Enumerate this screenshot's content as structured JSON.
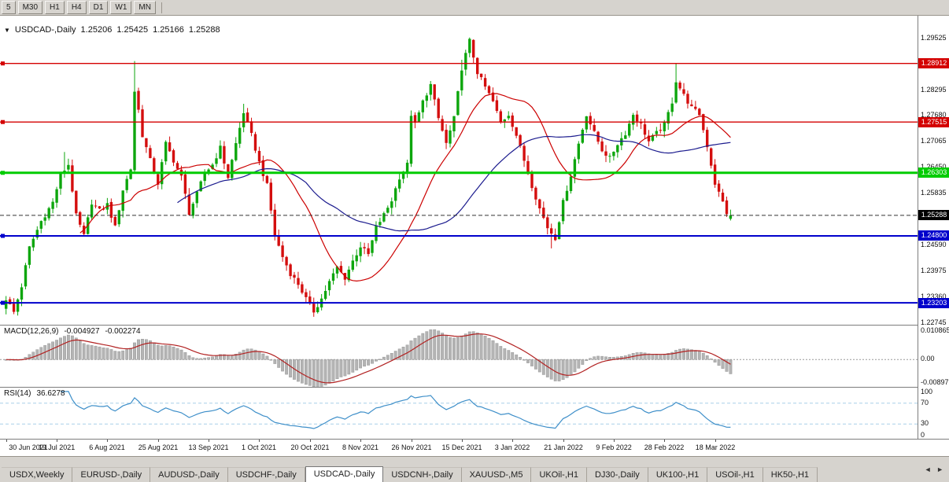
{
  "toolbar": {
    "timeframes": [
      "5",
      "M30",
      "H1",
      "H4",
      "D1",
      "W1",
      "MN"
    ]
  },
  "chart": {
    "title": {
      "marker": "▼",
      "symbol": "USDCAD-,Daily",
      "open": "1.25206",
      "high": "1.25425",
      "low": "1.25166",
      "close": "1.25288"
    },
    "price_axis": {
      "range": {
        "max": 1.3005,
        "min": 1.2268
      },
      "ticks": [
        {
          "label": "1.29525",
          "price": 1.29525
        },
        {
          "label": "1.28295",
          "price": 1.28295
        },
        {
          "label": "1.27680",
          "price": 1.2768
        },
        {
          "label": "1.27065",
          "price": 1.27065
        },
        {
          "label": "1.26450",
          "price": 1.2645
        },
        {
          "label": "1.25835",
          "price": 1.25835
        },
        {
          "label": "1.24590",
          "price": 1.2459
        },
        {
          "label": "1.23975",
          "price": 1.23975
        },
        {
          "label": "1.23360",
          "price": 1.2336
        },
        {
          "label": "1.22745",
          "price": 1.22745
        }
      ]
    },
    "hlines": [
      {
        "price": 1.28912,
        "label": "1.28912",
        "color": "#d40000",
        "thickness": 1.4
      },
      {
        "price": 1.27515,
        "label": "1.27515",
        "color": "#d40000",
        "thickness": 1.4
      },
      {
        "price": 1.26303,
        "label": "1.26303",
        "color": "#00cc00",
        "thickness": 3
      },
      {
        "price": 1.248,
        "label": "1.24800",
        "color": "#0000cc",
        "thickness": 2
      },
      {
        "price": 1.23203,
        "label": "1.23203",
        "color": "#0000cc",
        "thickness": 2
      }
    ],
    "last_price": {
      "value": 1.25288,
      "label": "1.25288",
      "color": "#000000"
    }
  },
  "macd_panel": {
    "name": "MACD(12,26,9)",
    "value1": "-0.004927",
    "value2": "-0.002274",
    "axis": [
      {
        "label": "0.010865",
        "value": 0.010865
      },
      {
        "label": "0.00",
        "value": 0
      },
      {
        "label": "-0.008971",
        "value": -0.008971
      }
    ]
  },
  "rsi_panel": {
    "name": "RSI(14)",
    "value": "36.6278",
    "levels": [
      70,
      30
    ],
    "axis": [
      {
        "label": "100",
        "value": 100
      },
      {
        "label": "70",
        "value": 70
      },
      {
        "label": "30",
        "value": 30
      },
      {
        "label": "0",
        "value": 0
      }
    ]
  },
  "bottom_tabs": {
    "items": [
      {
        "label": "USDX,Weekly",
        "active": false
      },
      {
        "label": "EURUSD-,Daily",
        "active": false
      },
      {
        "label": "AUDUSD-,Daily",
        "active": false
      },
      {
        "label": "USDCHF-,Daily",
        "active": false
      },
      {
        "label": "USDCAD-,Daily",
        "active": true
      },
      {
        "label": "USDCNH-,Daily",
        "active": false
      },
      {
        "label": "XAUUSD-,M5",
        "active": false
      },
      {
        "label": "UKOil-,H1",
        "active": false
      },
      {
        "label": "DJ30-,Daily",
        "active": false
      },
      {
        "label": "UK100-,H1",
        "active": false
      },
      {
        "label": "USOil-,H1",
        "active": false
      },
      {
        "label": "HK50-,H1",
        "active": false
      }
    ],
    "scroll_arrows": "◄ ►"
  },
  "colors": {
    "up": "#0da60d",
    "down": "#d40e0e",
    "ma_fast": "#cc0000",
    "ma_slow": "#1b1b8e",
    "macd_hist": "#b4b4b4",
    "macd_hist_edge": "#8f8f8f",
    "macd_signal": "#b22222",
    "rsi_line": "#3e8fc9",
    "rsi_levels": "#a8cfe8",
    "last_price_line": "#333333"
  },
  "chart_data": {
    "type": "candlestick",
    "symbol": "USDCAD-",
    "timeframe": "Daily",
    "title": "USDCAD-,Daily",
    "ohlc_current": {
      "open": 1.25206,
      "high": 1.25425,
      "low": 1.25166,
      "close": 1.25288
    },
    "x_labels": [
      "30 Jun 2021",
      "19 Jul 2021",
      "6 Aug 2021",
      "25 Aug 2021",
      "13 Sep 2021",
      "1 Oct 2021",
      "20 Oct 2021",
      "8 Nov 2021",
      "26 Nov 2021",
      "15 Dec 2021",
      "3 Jan 2022",
      "21 Jan 2022",
      "9 Feb 2022",
      "28 Feb 2022",
      "18 Mar 2022"
    ],
    "x_label_step": 13,
    "candle_count": 187,
    "ylim": [
      1.2268,
      1.3005
    ],
    "price_path_anchors": [
      [
        0,
        1.233
      ],
      [
        2,
        1.2298
      ],
      [
        4,
        1.236
      ],
      [
        6,
        1.2452
      ],
      [
        9,
        1.2515
      ],
      [
        12,
        1.256
      ],
      [
        14,
        1.2625
      ],
      [
        16,
        1.265
      ],
      [
        18,
        1.2528
      ],
      [
        20,
        1.248
      ],
      [
        22,
        1.256
      ],
      [
        24,
        1.254
      ],
      [
        26,
        1.2555
      ],
      [
        28,
        1.25
      ],
      [
        30,
        1.259
      ],
      [
        32,
        1.264
      ],
      [
        33,
        1.2825
      ],
      [
        34,
        1.278
      ],
      [
        35,
        1.272
      ],
      [
        37,
        1.266
      ],
      [
        39,
        1.2605
      ],
      [
        41,
        1.27
      ],
      [
        43,
        1.266
      ],
      [
        45,
        1.262
      ],
      [
        47,
        1.2535
      ],
      [
        49,
        1.258
      ],
      [
        51,
        1.263
      ],
      [
        53,
        1.265
      ],
      [
        55,
        1.269
      ],
      [
        57,
        1.262
      ],
      [
        59,
        1.27
      ],
      [
        61,
        1.2775
      ],
      [
        63,
        1.272
      ],
      [
        65,
        1.2655
      ],
      [
        67,
        1.26
      ],
      [
        69,
        1.248
      ],
      [
        71,
        1.243
      ],
      [
        73,
        1.239
      ],
      [
        75,
        1.2365
      ],
      [
        77,
        1.233
      ],
      [
        79,
        1.23
      ],
      [
        81,
        1.233
      ],
      [
        83,
        1.237
      ],
      [
        85,
        1.2405
      ],
      [
        87,
        1.238
      ],
      [
        89,
        1.242
      ],
      [
        91,
        1.2455
      ],
      [
        93,
        1.2435
      ],
      [
        95,
        1.25
      ],
      [
        97,
        1.253
      ],
      [
        99,
        1.2565
      ],
      [
        101,
        1.262
      ],
      [
        103,
        1.265
      ],
      [
        104,
        1.277
      ],
      [
        105,
        1.2745
      ],
      [
        107,
        1.28
      ],
      [
        109,
        1.284
      ],
      [
        111,
        1.276
      ],
      [
        113,
        1.27
      ],
      [
        115,
        1.276
      ],
      [
        117,
        1.288
      ],
      [
        119,
        1.2945
      ],
      [
        121,
        1.287
      ],
      [
        123,
        1.2835
      ],
      [
        125,
        1.28
      ],
      [
        127,
        1.275
      ],
      [
        129,
        1.277
      ],
      [
        131,
        1.272
      ],
      [
        133,
        1.266
      ],
      [
        135,
        1.26
      ],
      [
        137,
        1.2545
      ],
      [
        139,
        1.25
      ],
      [
        141,
        1.2475
      ],
      [
        143,
        1.256
      ],
      [
        145,
        1.2625
      ],
      [
        147,
        1.27
      ],
      [
        149,
        1.277
      ],
      [
        151,
        1.2725
      ],
      [
        153,
        1.2685
      ],
      [
        155,
        1.2665
      ],
      [
        157,
        1.27
      ],
      [
        159,
        1.2725
      ],
      [
        161,
        1.277
      ],
      [
        163,
        1.2745
      ],
      [
        165,
        1.2705
      ],
      [
        167,
        1.2725
      ],
      [
        169,
        1.2745
      ],
      [
        171,
        1.28
      ],
      [
        172,
        1.285
      ],
      [
        174,
        1.2815
      ],
      [
        176,
        1.2785
      ],
      [
        178,
        1.277
      ],
      [
        180,
        1.2695
      ],
      [
        182,
        1.2605
      ],
      [
        184,
        1.256
      ],
      [
        185,
        1.2535
      ],
      [
        186,
        1.25288
      ]
    ],
    "wick_overrides": {
      "3": {
        "low": 1.229
      },
      "15": {
        "high": 1.268
      },
      "33": {
        "high": 1.2897
      },
      "61": {
        "high": 1.2795
      },
      "79": {
        "low": 1.2287
      },
      "117": {
        "high": 1.29
      },
      "119": {
        "high": 1.2953
      },
      "140": {
        "low": 1.245
      },
      "172": {
        "high": 1.2892
      }
    },
    "overlays": [
      {
        "type": "sma",
        "period": 20,
        "color": "#cc0000"
      },
      {
        "type": "sma",
        "period": 45,
        "color": "#1b1b8e"
      }
    ],
    "indicators": [
      {
        "name": "MACD",
        "params": [
          12,
          26,
          9
        ],
        "current_values": [
          -0.004927,
          -0.002274
        ],
        "axis_values": [
          0.010865,
          0,
          -0.008971
        ]
      },
      {
        "name": "RSI",
        "params": [
          14
        ],
        "current_value": 36.6278,
        "levels": [
          70,
          30
        ],
        "axis_values": [
          100,
          70,
          30,
          0
        ]
      }
    ],
    "hlines": [
      {
        "price": 1.28912,
        "color": "red"
      },
      {
        "price": 1.27515,
        "color": "red"
      },
      {
        "price": 1.26303,
        "color": "green"
      },
      {
        "price": 1.248,
        "color": "blue"
      },
      {
        "price": 1.23203,
        "color": "blue"
      }
    ]
  }
}
